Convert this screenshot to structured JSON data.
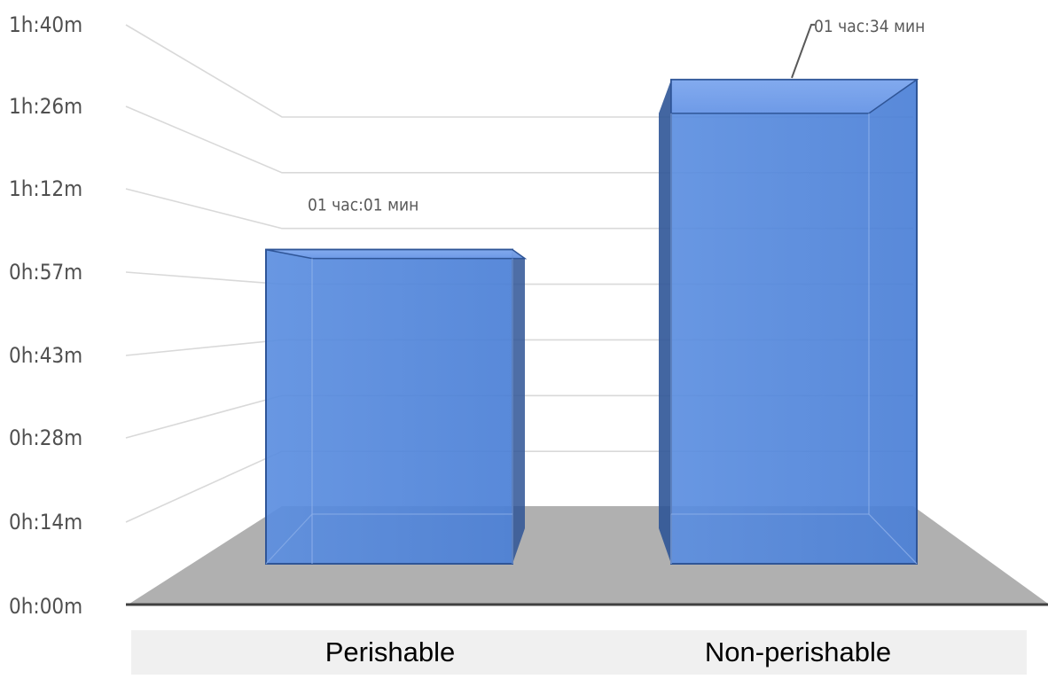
{
  "chart_data": {
    "type": "bar",
    "categories": [
      "Perishable",
      "Non-perishable"
    ],
    "values_minutes": [
      61,
      94
    ],
    "data_labels": [
      "01 час:01 мин",
      "01 час:34 мин"
    ],
    "y_ticks": [
      "0h:00m",
      "0h:14m",
      "0h:28m",
      "0h:43m",
      "0h:57m",
      "1h:12m",
      "1h:26m",
      "1h:40m"
    ],
    "ylim_minutes": [
      0,
      100
    ],
    "title": "",
    "xlabel": "",
    "ylabel": "",
    "grid": true,
    "legend": "none",
    "style": "3d-column",
    "colors": {
      "bar_fill": "#4a7fd6",
      "bar_edge": "#2f5597",
      "floor": "#b0b0b0",
      "gridline": "#d9d9d9",
      "axis": "#404040"
    }
  }
}
